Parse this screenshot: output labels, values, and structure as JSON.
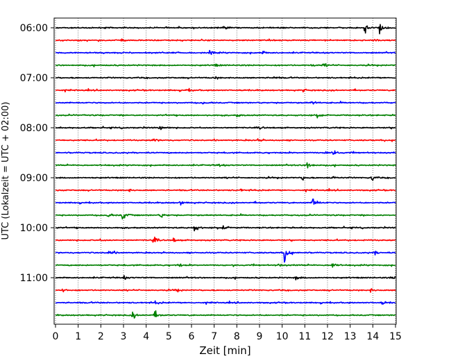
{
  "chart_data": {
    "type": "line",
    "title": "",
    "xlabel": "Zeit  [min]",
    "ylabel": "UTC (Lokalzeit = UTC + 02:00)",
    "xlim": [
      0,
      15
    ],
    "x_ticks": [
      "0",
      "1",
      "2",
      "3",
      "4",
      "5",
      "6",
      "7",
      "8",
      "9",
      "10",
      "11",
      "12",
      "13",
      "14",
      "15"
    ],
    "y_tick_labels": [
      "06:00",
      "07:00",
      "08:00",
      "09:00",
      "10:00",
      "11:00"
    ],
    "grid": "vertical dotted",
    "trace_minutes": 15,
    "trace_colors": [
      "#000000",
      "#ff0000",
      "#0000ff",
      "#008000"
    ],
    "traces": [
      {
        "start": "06:00",
        "events": [
          {
            "t": 13.65,
            "a": 1.0
          },
          {
            "t": 14.3,
            "a": 1.0
          },
          {
            "t": 7.4,
            "a": 0.35
          }
        ]
      },
      {
        "start": "06:15",
        "events": [
          {
            "t": 14.05,
            "a": 0.35
          },
          {
            "t": 2.9,
            "a": 0.25
          }
        ]
      },
      {
        "start": "06:30",
        "events": [
          {
            "t": 6.8,
            "a": 0.35
          },
          {
            "t": 9.1,
            "a": 0.3
          }
        ]
      },
      {
        "start": "06:45",
        "events": [
          {
            "t": 7.0,
            "a": 0.3
          },
          {
            "t": 11.3,
            "a": 0.3
          },
          {
            "t": 11.8,
            "a": 0.35
          }
        ]
      },
      {
        "start": "07:00",
        "events": [
          {
            "t": 7.0,
            "a": 0.3
          },
          {
            "t": 9.6,
            "a": 0.25
          }
        ]
      },
      {
        "start": "07:15",
        "events": [
          {
            "t": 5.8,
            "a": 0.3
          },
          {
            "t": 10.9,
            "a": 0.25
          }
        ]
      },
      {
        "start": "07:30",
        "events": [
          {
            "t": 6.5,
            "a": 0.25
          },
          {
            "t": 11.3,
            "a": 0.3
          }
        ]
      },
      {
        "start": "07:45",
        "events": [
          {
            "t": 8.0,
            "a": 0.3
          },
          {
            "t": 11.5,
            "a": 0.35
          }
        ]
      },
      {
        "start": "08:00",
        "events": [
          {
            "t": 4.6,
            "a": 0.4
          },
          {
            "t": 9.0,
            "a": 0.25
          }
        ]
      },
      {
        "start": "08:15",
        "events": [
          {
            "t": 4.3,
            "a": 0.45
          },
          {
            "t": 8.9,
            "a": 0.3
          }
        ]
      },
      {
        "start": "08:30",
        "events": [
          {
            "t": 11.95,
            "a": 0.6
          },
          {
            "t": 12.3,
            "a": 0.3
          }
        ]
      },
      {
        "start": "08:45",
        "events": [
          {
            "t": 11.1,
            "a": 1.0
          },
          {
            "t": 7.2,
            "a": 0.3
          }
        ]
      },
      {
        "start": "09:00",
        "events": [
          {
            "t": 10.9,
            "a": 0.5
          },
          {
            "t": 13.95,
            "a": 0.55
          },
          {
            "t": 12.2,
            "a": 0.3
          }
        ]
      },
      {
        "start": "09:15",
        "events": [
          {
            "t": 3.2,
            "a": 0.3
          },
          {
            "t": 8.1,
            "a": 0.25
          }
        ]
      },
      {
        "start": "09:30",
        "events": [
          {
            "t": 11.35,
            "a": 1.2
          },
          {
            "t": 5.5,
            "a": 0.35
          }
        ]
      },
      {
        "start": "09:45",
        "events": [
          {
            "t": 2.95,
            "a": 0.9
          },
          {
            "t": 4.6,
            "a": 0.55
          },
          {
            "t": 2.3,
            "a": 0.4
          }
        ]
      },
      {
        "start": "10:00",
        "events": [
          {
            "t": 6.1,
            "a": 0.8
          },
          {
            "t": 7.4,
            "a": 0.35
          }
        ]
      },
      {
        "start": "10:15",
        "events": [
          {
            "t": 4.3,
            "a": 0.6
          },
          {
            "t": 1.9,
            "a": 0.3
          },
          {
            "t": 5.2,
            "a": 0.3
          }
        ]
      },
      {
        "start": "10:30",
        "events": [
          {
            "t": 10.1,
            "a": 1.6
          },
          {
            "t": 2.35,
            "a": 0.4
          },
          {
            "t": 14.1,
            "a": 0.3
          }
        ]
      },
      {
        "start": "10:45",
        "events": [
          {
            "t": 12.2,
            "a": 0.7
          },
          {
            "t": 5.4,
            "a": 0.35
          },
          {
            "t": 9.8,
            "a": 0.3
          }
        ]
      },
      {
        "start": "11:00",
        "events": [
          {
            "t": 3.0,
            "a": 0.3
          },
          {
            "t": 10.6,
            "a": 0.3
          },
          {
            "t": 14.8,
            "a": 0.3
          }
        ]
      },
      {
        "start": "11:15",
        "events": [
          {
            "t": 5.3,
            "a": 0.35
          },
          {
            "t": 13.9,
            "a": 0.3
          },
          {
            "t": 0.3,
            "a": 0.3
          }
        ]
      },
      {
        "start": "11:30",
        "events": [
          {
            "t": 4.4,
            "a": 0.3
          },
          {
            "t": 14.4,
            "a": 0.3
          }
        ]
      },
      {
        "start": "11:45",
        "events": [
          {
            "t": 4.35,
            "a": 0.9
          },
          {
            "t": 3.4,
            "a": 0.6
          }
        ]
      }
    ]
  }
}
